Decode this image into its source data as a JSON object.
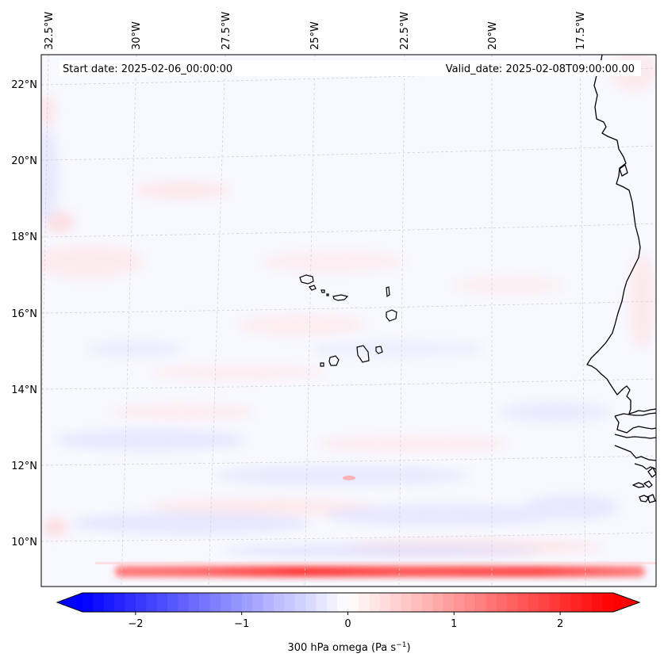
{
  "map": {
    "start_date": "Start date: 2025-02-06_00:00:00",
    "valid_date": "Valid_date: 2025-02-08T09:00:00.00",
    "lon_labels": [
      "32.5°W",
      "30°W",
      "27.5°W",
      "25°W",
      "22.5°W",
      "20°W",
      "17.5°W"
    ],
    "lat_labels": [
      "22°N",
      "20°N",
      "18°N",
      "16°N",
      "14°N",
      "12°N",
      "10°N"
    ]
  },
  "colorbar": {
    "label_main": "300 hPa omega (Pa s",
    "label_exp": "−1",
    "label_close": ")",
    "min": -2.5,
    "max": 2.5,
    "ticks": [
      "−2",
      "−1",
      "0",
      "1",
      "2"
    ],
    "tick_values": [
      -2,
      -1,
      0,
      1,
      2
    ],
    "colors": {
      "negative": "#0000ff",
      "zero": "#ffffff",
      "positive": "#ff0000"
    }
  }
}
